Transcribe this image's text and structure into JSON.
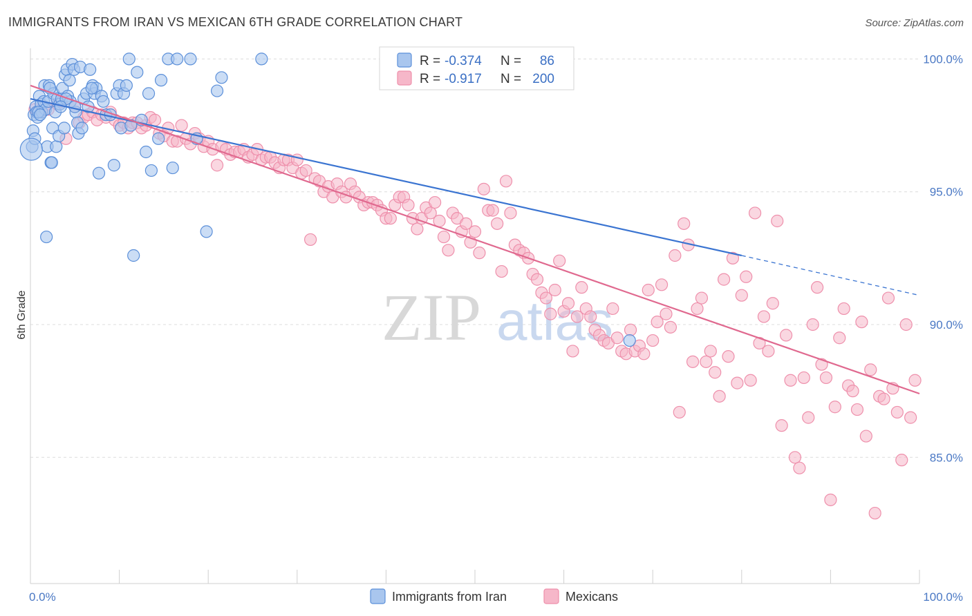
{
  "title": "IMMIGRANTS FROM IRAN VS MEXICAN 6TH GRADE CORRELATION CHART",
  "source": "Source: ZipAtlas.com",
  "watermark": {
    "zip": "ZIP",
    "atlas": "atlas"
  },
  "colors": {
    "iran_fill": "#a9c6ee",
    "iran_stroke": "#5b8fd9",
    "iran_line": "#3a74d1",
    "mex_fill": "#f6b7c9",
    "mex_stroke": "#ee8fab",
    "mex_line": "#e0698f",
    "grid": "#dcdcdc",
    "tick": "#4a78c4"
  },
  "legend": {
    "row1": {
      "r_label": "R =",
      "r_value": "-0.374",
      "n_label": "N =",
      "n_value": "86"
    },
    "row2": {
      "r_label": "R =",
      "r_value": "-0.917",
      "n_label": "N =",
      "n_value": "200"
    }
  },
  "bottom_legend": {
    "iran": "Immigrants from Iran",
    "mex": "Mexicans"
  },
  "chart_data": {
    "type": "scatter",
    "ylabel": "6th Grade",
    "xlabel": "",
    "x_tick_labels": [
      "0.0%",
      "100.0%"
    ],
    "y_ticks": [
      {
        "value": 100,
        "label": "100.0%"
      },
      {
        "value": 95,
        "label": "95.0%"
      },
      {
        "value": 90,
        "label": "90.0%"
      },
      {
        "value": 85,
        "label": "85.0%"
      }
    ],
    "xlim": [
      0,
      100
    ],
    "ylim": [
      80.25,
      100.4
    ],
    "series": [
      {
        "name": "Immigrants from Iran",
        "trend": {
          "x0": 0,
          "y0": 98.5,
          "x1": 80,
          "y1": 92.6,
          "dash_to_x": 100,
          "dash_to_y": 91.1
        },
        "points": [
          [
            0.2,
            96.7
          ],
          [
            0.3,
            97.3
          ],
          [
            0.4,
            97.9
          ],
          [
            0.5,
            97.0
          ],
          [
            0.6,
            98.2
          ],
          [
            0.7,
            98.0
          ],
          [
            0.8,
            97.8
          ],
          [
            1.0,
            98.6
          ],
          [
            1.2,
            98.3
          ],
          [
            1.3,
            98.0
          ],
          [
            1.5,
            98.4
          ],
          [
            1.6,
            99.0
          ],
          [
            1.7,
            98.1
          ],
          [
            1.9,
            96.7
          ],
          [
            2.0,
            98.4
          ],
          [
            2.1,
            99.0
          ],
          [
            2.3,
            96.1
          ],
          [
            2.5,
            97.4
          ],
          [
            2.6,
            98.7
          ],
          [
            2.8,
            98.0
          ],
          [
            2.9,
            96.7
          ],
          [
            3.0,
            98.5
          ],
          [
            3.2,
            97.1
          ],
          [
            3.3,
            98.3
          ],
          [
            3.5,
            98.5
          ],
          [
            3.6,
            98.9
          ],
          [
            3.8,
            97.4
          ],
          [
            3.9,
            99.4
          ],
          [
            4.1,
            99.6
          ],
          [
            4.2,
            98.6
          ],
          [
            4.4,
            99.2
          ],
          [
            4.5,
            98.4
          ],
          [
            4.7,
            99.8
          ],
          [
            4.9,
            99.6
          ],
          [
            5.1,
            98.0
          ],
          [
            5.3,
            97.6
          ],
          [
            5.4,
            97.2
          ],
          [
            5.6,
            99.7
          ],
          [
            5.8,
            97.4
          ],
          [
            6.0,
            98.5
          ],
          [
            6.3,
            98.7
          ],
          [
            6.5,
            98.2
          ],
          [
            6.7,
            99.6
          ],
          [
            7.0,
            99.0
          ],
          [
            7.2,
            98.7
          ],
          [
            7.4,
            98.9
          ],
          [
            7.7,
            95.7
          ],
          [
            8.0,
            98.6
          ],
          [
            8.2,
            98.4
          ],
          [
            8.5,
            97.9
          ],
          [
            9.0,
            97.9
          ],
          [
            9.4,
            96.0
          ],
          [
            9.7,
            98.7
          ],
          [
            10.0,
            99.0
          ],
          [
            10.2,
            97.4
          ],
          [
            10.5,
            98.7
          ],
          [
            10.8,
            99.0
          ],
          [
            11.1,
            100.0
          ],
          [
            11.3,
            97.5
          ],
          [
            11.6,
            92.6
          ],
          [
            12.0,
            99.5
          ],
          [
            12.5,
            97.7
          ],
          [
            13.0,
            96.5
          ],
          [
            13.3,
            98.7
          ],
          [
            13.6,
            95.8
          ],
          [
            14.4,
            97.0
          ],
          [
            14.7,
            99.2
          ],
          [
            15.5,
            100.0
          ],
          [
            16.0,
            95.9
          ],
          [
            16.5,
            100.0
          ],
          [
            18.0,
            100.0
          ],
          [
            18.7,
            97.0
          ],
          [
            19.8,
            93.5
          ],
          [
            21.0,
            98.8
          ],
          [
            21.5,
            99.3
          ],
          [
            26.0,
            100.0
          ],
          [
            1.8,
            93.3
          ],
          [
            2.2,
            98.9
          ],
          [
            0.9,
            98.0
          ],
          [
            1.1,
            97.9
          ],
          [
            5.0,
            98.2
          ],
          [
            4.0,
            98.5
          ],
          [
            3.4,
            98.2
          ],
          [
            2.4,
            96.1
          ],
          [
            6.9,
            98.9
          ],
          [
            67.4,
            89.4
          ]
        ]
      },
      {
        "name": "Mexicans",
        "trend": {
          "x0": 0,
          "y0": 99.0,
          "x1": 100,
          "y1": 87.4
        },
        "points": [
          [
            0.5,
            98.1
          ],
          [
            0.8,
            98.0
          ],
          [
            1.2,
            98.0
          ],
          [
            1.5,
            98.2
          ],
          [
            2.0,
            98.1
          ],
          [
            3.0,
            98.3
          ],
          [
            3.5,
            98.4
          ],
          [
            4.0,
            97.0
          ],
          [
            5.0,
            98.2
          ],
          [
            5.5,
            97.6
          ],
          [
            6.0,
            97.8
          ],
          [
            6.5,
            97.9
          ],
          [
            7.0,
            98.0
          ],
          [
            7.5,
            97.7
          ],
          [
            8.0,
            97.9
          ],
          [
            8.5,
            97.8
          ],
          [
            9.0,
            98.0
          ],
          [
            9.5,
            97.7
          ],
          [
            10.0,
            97.5
          ],
          [
            10.5,
            97.6
          ],
          [
            11.0,
            97.4
          ],
          [
            11.5,
            97.6
          ],
          [
            12.0,
            97.6
          ],
          [
            12.5,
            97.4
          ],
          [
            13.0,
            97.5
          ],
          [
            13.5,
            97.8
          ],
          [
            14.0,
            97.7
          ],
          [
            14.5,
            97.2
          ],
          [
            15.0,
            97.1
          ],
          [
            15.5,
            97.4
          ],
          [
            16.0,
            96.9
          ],
          [
            16.5,
            96.9
          ],
          [
            17.0,
            97.5
          ],
          [
            17.5,
            97.0
          ],
          [
            18.0,
            96.8
          ],
          [
            18.5,
            97.2
          ],
          [
            19.0,
            97.0
          ],
          [
            19.5,
            96.7
          ],
          [
            20.0,
            96.9
          ],
          [
            20.5,
            96.6
          ],
          [
            21.0,
            96.0
          ],
          [
            21.5,
            96.7
          ],
          [
            22.0,
            96.6
          ],
          [
            22.5,
            96.4
          ],
          [
            23.0,
            96.5
          ],
          [
            23.5,
            96.5
          ],
          [
            24.0,
            96.6
          ],
          [
            24.5,
            96.3
          ],
          [
            25.0,
            96.4
          ],
          [
            25.5,
            96.6
          ],
          [
            26.0,
            96.2
          ],
          [
            26.5,
            96.3
          ],
          [
            27.0,
            96.3
          ],
          [
            27.5,
            96.1
          ],
          [
            28.0,
            95.9
          ],
          [
            28.5,
            96.2
          ],
          [
            29.0,
            96.2
          ],
          [
            29.5,
            95.9
          ],
          [
            30.0,
            96.2
          ],
          [
            30.5,
            95.7
          ],
          [
            31.0,
            95.8
          ],
          [
            31.5,
            93.2
          ],
          [
            32.0,
            95.5
          ],
          [
            32.5,
            95.4
          ],
          [
            33.0,
            95.0
          ],
          [
            33.5,
            95.2
          ],
          [
            34.0,
            94.8
          ],
          [
            34.5,
            95.3
          ],
          [
            35.0,
            95.0
          ],
          [
            35.5,
            94.8
          ],
          [
            36.0,
            95.3
          ],
          [
            36.5,
            95.0
          ],
          [
            37.0,
            94.8
          ],
          [
            37.5,
            94.5
          ],
          [
            38.0,
            94.6
          ],
          [
            38.5,
            94.6
          ],
          [
            39.0,
            94.5
          ],
          [
            39.5,
            94.3
          ],
          [
            40.0,
            94.0
          ],
          [
            40.5,
            94.0
          ],
          [
            41.0,
            94.5
          ],
          [
            41.5,
            94.8
          ],
          [
            42.0,
            94.8
          ],
          [
            42.5,
            94.5
          ],
          [
            43.0,
            94.0
          ],
          [
            43.5,
            93.6
          ],
          [
            44.0,
            94.0
          ],
          [
            44.5,
            94.4
          ],
          [
            45.0,
            94.2
          ],
          [
            45.5,
            94.6
          ],
          [
            46.0,
            93.9
          ],
          [
            46.5,
            93.3
          ],
          [
            47.0,
            92.8
          ],
          [
            47.5,
            94.2
          ],
          [
            48.0,
            94.0
          ],
          [
            48.5,
            93.5
          ],
          [
            49.0,
            93.8
          ],
          [
            49.5,
            93.1
          ],
          [
            50.0,
            93.5
          ],
          [
            50.5,
            92.7
          ],
          [
            51.0,
            95.1
          ],
          [
            51.5,
            94.3
          ],
          [
            52.0,
            94.3
          ],
          [
            52.5,
            93.8
          ],
          [
            53.0,
            92.0
          ],
          [
            53.5,
            95.4
          ],
          [
            54.0,
            94.2
          ],
          [
            54.5,
            93.0
          ],
          [
            55.0,
            92.8
          ],
          [
            55.5,
            92.7
          ],
          [
            56.0,
            92.5
          ],
          [
            56.5,
            91.9
          ],
          [
            57.0,
            91.7
          ],
          [
            57.5,
            91.2
          ],
          [
            58.0,
            91.0
          ],
          [
            58.5,
            90.4
          ],
          [
            59.0,
            91.3
          ],
          [
            59.5,
            92.4
          ],
          [
            60.0,
            90.5
          ],
          [
            60.5,
            90.8
          ],
          [
            61.0,
            89.0
          ],
          [
            61.5,
            90.3
          ],
          [
            62.0,
            91.4
          ],
          [
            62.5,
            90.6
          ],
          [
            63.0,
            90.3
          ],
          [
            63.5,
            89.8
          ],
          [
            64.0,
            89.6
          ],
          [
            64.5,
            89.4
          ],
          [
            65.0,
            89.3
          ],
          [
            65.5,
            90.6
          ],
          [
            66.0,
            89.5
          ],
          [
            66.5,
            89.0
          ],
          [
            67.0,
            88.9
          ],
          [
            67.5,
            89.8
          ],
          [
            68.0,
            89.0
          ],
          [
            68.5,
            89.2
          ],
          [
            69.0,
            88.9
          ],
          [
            69.5,
            91.3
          ],
          [
            70.0,
            89.4
          ],
          [
            70.5,
            90.1
          ],
          [
            71.0,
            91.5
          ],
          [
            71.5,
            90.4
          ],
          [
            72.0,
            89.9
          ],
          [
            72.5,
            92.6
          ],
          [
            73.0,
            86.7
          ],
          [
            73.5,
            93.8
          ],
          [
            74.0,
            93.0
          ],
          [
            74.5,
            88.6
          ],
          [
            75.0,
            90.6
          ],
          [
            75.5,
            91.0
          ],
          [
            76.0,
            88.6
          ],
          [
            76.5,
            89.0
          ],
          [
            77.0,
            88.2
          ],
          [
            77.5,
            87.3
          ],
          [
            78.0,
            91.7
          ],
          [
            78.5,
            88.8
          ],
          [
            79.0,
            92.5
          ],
          [
            79.5,
            87.8
          ],
          [
            80.0,
            91.1
          ],
          [
            80.5,
            91.8
          ],
          [
            81.0,
            87.9
          ],
          [
            81.5,
            94.2
          ],
          [
            82.0,
            89.3
          ],
          [
            82.5,
            90.3
          ],
          [
            83.0,
            89.0
          ],
          [
            83.5,
            90.8
          ],
          [
            84.0,
            93.9
          ],
          [
            84.5,
            86.2
          ],
          [
            85.0,
            89.6
          ],
          [
            85.5,
            87.9
          ],
          [
            86.0,
            85.0
          ],
          [
            86.5,
            84.6
          ],
          [
            87.0,
            88.0
          ],
          [
            87.5,
            86.5
          ],
          [
            88.0,
            90.0
          ],
          [
            88.5,
            91.4
          ],
          [
            89.0,
            88.5
          ],
          [
            89.5,
            88.0
          ],
          [
            90.0,
            83.4
          ],
          [
            90.5,
            86.9
          ],
          [
            91.0,
            89.5
          ],
          [
            91.5,
            90.6
          ],
          [
            92.0,
            87.7
          ],
          [
            92.5,
            87.5
          ],
          [
            93.0,
            86.8
          ],
          [
            93.5,
            90.1
          ],
          [
            94.0,
            85.8
          ],
          [
            94.5,
            88.3
          ],
          [
            95.0,
            82.9
          ],
          [
            95.5,
            87.3
          ],
          [
            96.0,
            87.2
          ],
          [
            96.5,
            91.0
          ],
          [
            97.0,
            87.6
          ],
          [
            97.5,
            86.7
          ],
          [
            98.0,
            84.9
          ],
          [
            98.5,
            90.0
          ],
          [
            99.0,
            86.5
          ],
          [
            99.5,
            87.9
          ]
        ]
      }
    ]
  }
}
